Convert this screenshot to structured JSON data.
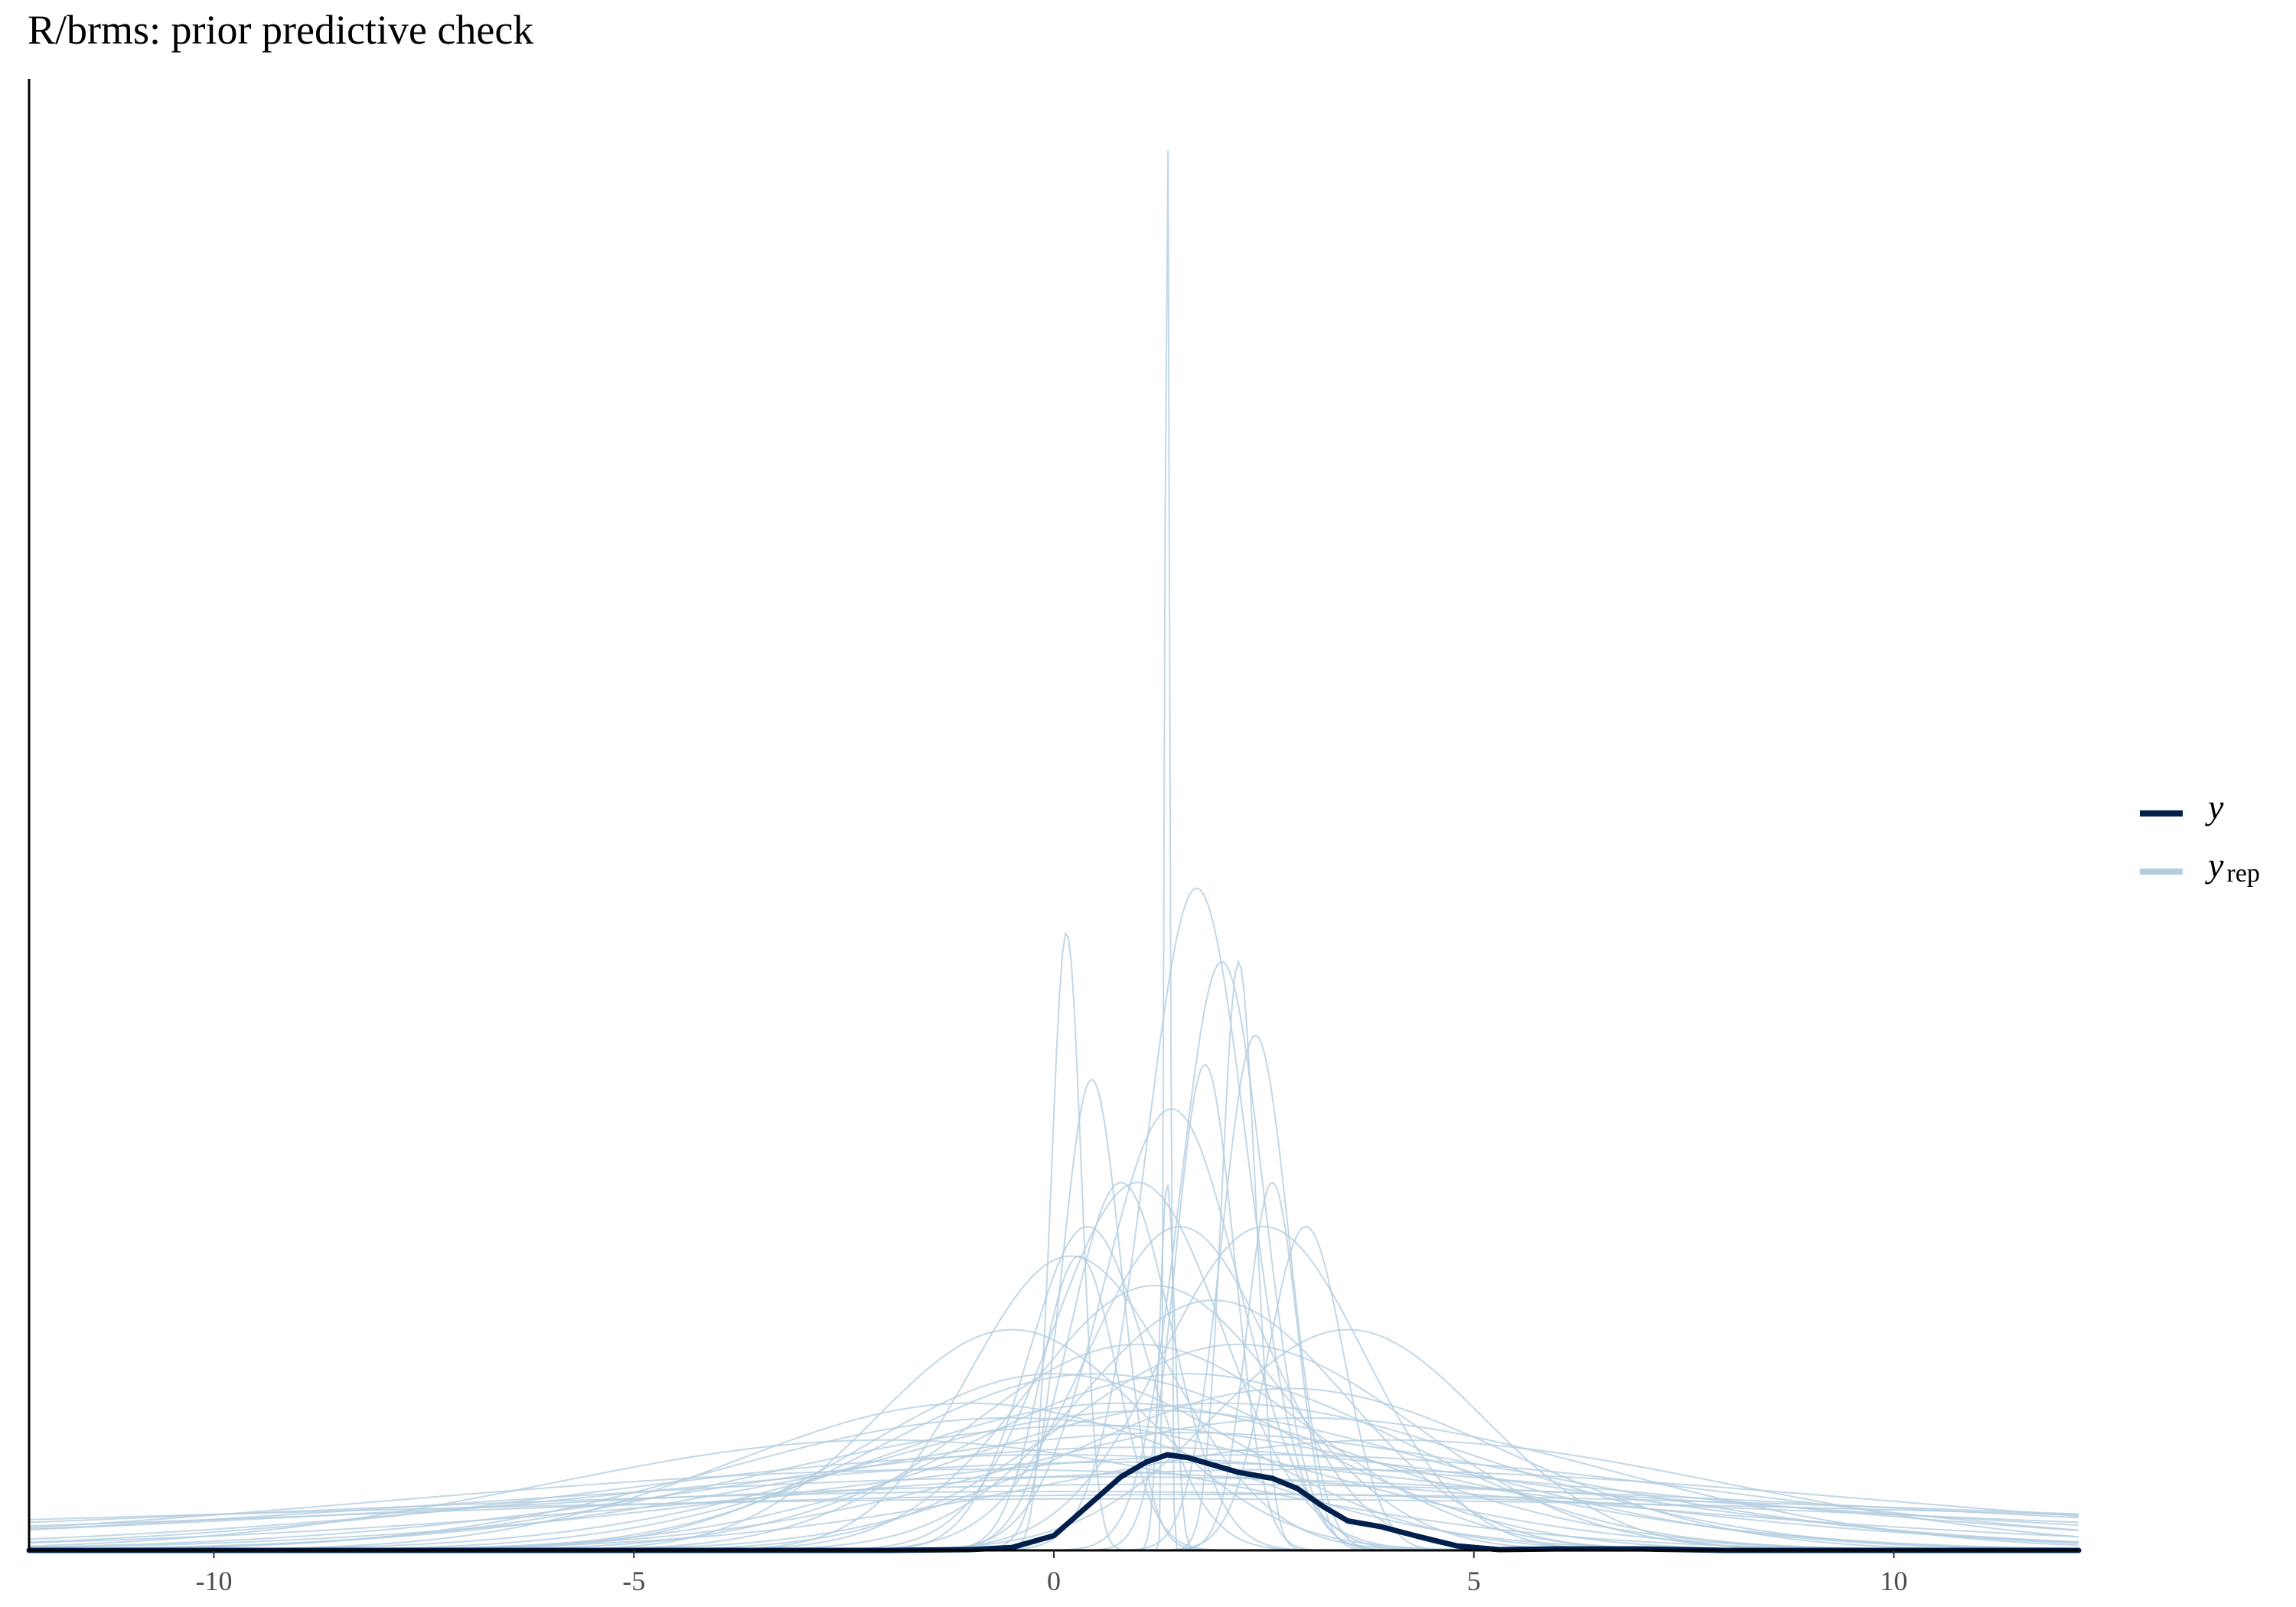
{
  "chart_data": {
    "type": "line",
    "chart_kind": "density overlay (prior predictive check)",
    "title": "R/brms: prior predictive check",
    "xlabel": "",
    "ylabel": "",
    "xlim": [
      -12.2,
      12.2
    ],
    "ylim": [
      0,
      1.0
    ],
    "y_axis_ticks": "none",
    "x_ticks": [
      -10,
      -5,
      0,
      5,
      10
    ],
    "x_tick_labels": [
      "-10",
      "-5",
      "0",
      "5",
      "10"
    ],
    "grid": false,
    "legend": {
      "position": "right",
      "entries": [
        {
          "label": "y",
          "subscript": "",
          "color": "#011f4b"
        },
        {
          "label": "y",
          "subscript": "rep",
          "color": "#b3cde0"
        }
      ]
    },
    "colors": {
      "y": "#011f4b",
      "yrep": "#b3cde0"
    },
    "series": [
      {
        "name": "y",
        "role": "observed",
        "x": [
          -12.2,
          -2.0,
          -1.0,
          -0.5,
          0.0,
          0.4,
          0.8,
          1.1,
          1.35,
          1.6,
          1.9,
          2.2,
          2.6,
          2.9,
          3.2,
          3.5,
          3.9,
          4.3,
          4.8,
          5.3,
          6.0,
          7.0,
          8.0,
          12.2
        ],
        "y": [
          0.0,
          0.0,
          0.0005,
          0.002,
          0.01,
          0.03,
          0.05,
          0.06,
          0.065,
          0.063,
          0.058,
          0.053,
          0.049,
          0.042,
          0.03,
          0.02,
          0.016,
          0.01,
          0.003,
          0.0005,
          0.001,
          0.001,
          0.0,
          0.0
        ]
      }
    ],
    "yrep_draws": [
      {
        "mu": 1.35,
        "sd": 0.03,
        "w": 1.0
      },
      {
        "mu": 1.35,
        "sd": 0.09,
        "w": 0.25
      },
      {
        "mu": 0.15,
        "sd": 0.18,
        "w": 0.42
      },
      {
        "mu": 0.45,
        "sd": 0.35,
        "w": 0.32
      },
      {
        "mu": 2.2,
        "sd": 0.2,
        "w": 0.4
      },
      {
        "mu": 2.4,
        "sd": 0.4,
        "w": 0.35
      },
      {
        "mu": 1.8,
        "sd": 0.35,
        "w": 0.33
      },
      {
        "mu": 2.0,
        "sd": 0.5,
        "w": 0.4
      },
      {
        "mu": 1.7,
        "sd": 0.6,
        "w": 0.45
      },
      {
        "mu": 0.8,
        "sd": 0.6,
        "w": 0.25
      },
      {
        "mu": 3.0,
        "sd": 0.45,
        "w": 0.22
      },
      {
        "mu": 1.4,
        "sd": 0.8,
        "w": 0.3
      },
      {
        "mu": 0.4,
        "sd": 0.7,
        "w": 0.22
      },
      {
        "mu": 1.0,
        "sd": 1.0,
        "w": 0.25
      },
      {
        "mu": 1.5,
        "sd": 1.1,
        "w": 0.22
      },
      {
        "mu": 2.5,
        "sd": 1.2,
        "w": 0.22
      },
      {
        "mu": 0.2,
        "sd": 1.2,
        "w": 0.2
      },
      {
        "mu": 1.2,
        "sd": 1.5,
        "w": 0.18
      },
      {
        "mu": 1.9,
        "sd": 1.6,
        "w": 0.17
      },
      {
        "mu": -0.5,
        "sd": 1.6,
        "w": 0.15
      },
      {
        "mu": 3.5,
        "sd": 1.6,
        "w": 0.15
      },
      {
        "mu": 1.0,
        "sd": 2.0,
        "w": 0.14
      },
      {
        "mu": 2.2,
        "sd": 2.1,
        "w": 0.14
      },
      {
        "mu": 0.0,
        "sd": 2.2,
        "w": 0.12
      },
      {
        "mu": 0.5,
        "sd": 2.5,
        "w": 0.12
      },
      {
        "mu": 1.6,
        "sd": 2.6,
        "w": 0.12
      },
      {
        "mu": 2.8,
        "sd": 2.6,
        "w": 0.11
      },
      {
        "mu": -1.0,
        "sd": 2.8,
        "w": 0.1
      },
      {
        "mu": 0.8,
        "sd": 3.0,
        "w": 0.1
      },
      {
        "mu": 2.0,
        "sd": 3.2,
        "w": 0.1
      },
      {
        "mu": 1.2,
        "sd": 3.5,
        "w": 0.095
      },
      {
        "mu": -0.5,
        "sd": 3.5,
        "w": 0.09
      },
      {
        "mu": 3.0,
        "sd": 3.6,
        "w": 0.09
      },
      {
        "mu": 0.5,
        "sd": 4.0,
        "w": 0.085
      },
      {
        "mu": 1.5,
        "sd": 4.5,
        "w": 0.08
      },
      {
        "mu": -2.0,
        "sd": 4.0,
        "w": 0.075
      },
      {
        "mu": 4.0,
        "sd": 4.0,
        "w": 0.075
      },
      {
        "mu": 1.0,
        "sd": 5.0,
        "w": 0.07
      },
      {
        "mu": 0.0,
        "sd": 5.5,
        "w": 0.065
      },
      {
        "mu": 2.5,
        "sd": 5.5,
        "w": 0.065
      },
      {
        "mu": 1.0,
        "sd": 6.5,
        "w": 0.06
      },
      {
        "mu": -1.0,
        "sd": 7.0,
        "w": 0.055
      },
      {
        "mu": 3.0,
        "sd": 7.0,
        "w": 0.055
      },
      {
        "mu": 0.5,
        "sd": 8.0,
        "w": 0.05
      },
      {
        "mu": 1.5,
        "sd": 9.0,
        "w": 0.045
      },
      {
        "mu": 0.0,
        "sd": 10.0,
        "w": 0.04
      },
      {
        "mu": 2.0,
        "sd": 11.0,
        "w": 0.038
      },
      {
        "mu": 1.0,
        "sd": 13.0,
        "w": 0.035
      },
      {
        "mu": 0.3,
        "sd": 0.45,
        "w": 0.2
      },
      {
        "mu": 2.6,
        "sd": 0.3,
        "w": 0.25
      }
    ]
  }
}
